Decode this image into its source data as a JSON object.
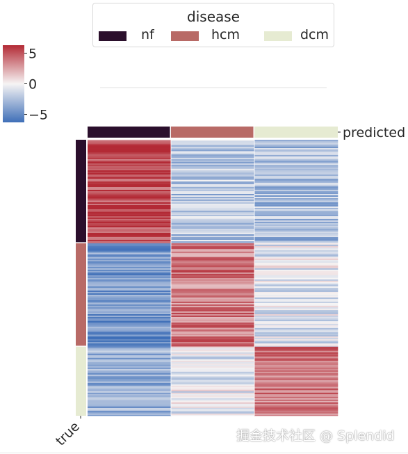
{
  "legend": {
    "title": "disease",
    "entries": [
      {
        "label": "nf",
        "color": "#2b0f2c"
      },
      {
        "label": "hcm",
        "color": "#b86a66"
      },
      {
        "label": "dcm",
        "color": "#e6ebd2"
      }
    ]
  },
  "colorbar": {
    "ticks": [
      "5",
      "0",
      "−5"
    ],
    "min": -6.3,
    "max": 6.3,
    "colors": {
      "low": "#3f6fb8",
      "mid": "#f6f4f4",
      "high": "#b32a35"
    }
  },
  "chart_data": {
    "type": "heatmap",
    "title": "",
    "row_annotation_label": "true",
    "column_annotation_label": "predicted",
    "columns": [
      "nf",
      "hcm",
      "dcm"
    ],
    "row_groups": [
      {
        "label": "nf",
        "fraction": 0.375
      },
      {
        "label": "hcm",
        "fraction": 0.375
      },
      {
        "label": "dcm",
        "fraction": 0.25
      }
    ],
    "block_means": [
      {
        "true": "nf",
        "predicted": "nf",
        "value": 5.5
      },
      {
        "true": "nf",
        "predicted": "hcm",
        "value": -2.2
      },
      {
        "true": "nf",
        "predicted": "dcm",
        "value": -2.6
      },
      {
        "true": "hcm",
        "predicted": "nf",
        "value": -4.5
      },
      {
        "true": "hcm",
        "predicted": "hcm",
        "value": 3.8
      },
      {
        "true": "hcm",
        "predicted": "dcm",
        "value": -0.8
      },
      {
        "true": "dcm",
        "predicted": "nf",
        "value": -3.5
      },
      {
        "true": "dcm",
        "predicted": "hcm",
        "value": -0.6
      },
      {
        "true": "dcm",
        "predicted": "dcm",
        "value": 4.0
      }
    ]
  },
  "watermark": "掘金技术社区 @ Splendid"
}
